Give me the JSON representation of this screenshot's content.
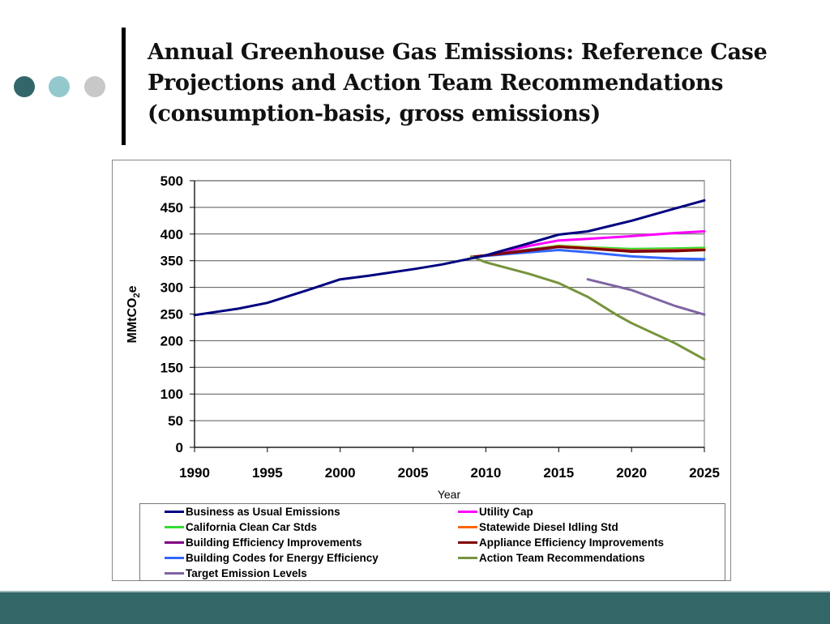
{
  "slide": {
    "title_lines": [
      "Annual Greenhouse Gas Emissions: Reference Case",
      "Projections and Action Team Recommendations",
      "(consumption-basis, gross emissions)"
    ],
    "decor_dot_colors": [
      "#33666a",
      "#93c9cc",
      "#c8c8c8"
    ],
    "footer_color": "#336666"
  },
  "chart_data": {
    "type": "line",
    "title": "Annual Greenhouse Gas Emissions: Reference Case Projections and Action Team Recommendations (consumption-basis, gross emissions)",
    "xlabel": "Year",
    "ylabel": "MMtCO2e",
    "ylabel_main": "MMtCO",
    "ylabel_sub": "2",
    "ylabel_tail": "e",
    "xlim": [
      1990,
      2025
    ],
    "ylim": [
      0,
      500
    ],
    "xticks": [
      1990,
      1995,
      2000,
      2005,
      2010,
      2015,
      2020,
      2025
    ],
    "xtick_labels": [
      "1990",
      "1995",
      "2000",
      "2005",
      "2010",
      "2015",
      "2020",
      "2025"
    ],
    "yticks": [
      0,
      50,
      100,
      150,
      200,
      250,
      300,
      350,
      400,
      450,
      500
    ],
    "ytick_labels": [
      "0",
      "50",
      "100",
      "150",
      "200",
      "250",
      "300",
      "350",
      "400",
      "450",
      "500"
    ],
    "grid": true,
    "legend_position": "bottom",
    "series": [
      {
        "name": "Business as Usual Emissions",
        "color": "#000080",
        "x": [
          1990,
          1993,
          1995,
          1998,
          2000,
          2002,
          2005,
          2007,
          2010,
          2013,
          2015,
          2017,
          2020,
          2023,
          2025
        ],
        "y": [
          248,
          260,
          271,
          297,
          315,
          322,
          334,
          343,
          360,
          383,
          399,
          405,
          425,
          448,
          463
        ]
      },
      {
        "name": "Utility Cap",
        "color": "#ff00ff",
        "x": [
          2009,
          2010,
          2013,
          2015,
          2017,
          2020,
          2023,
          2025
        ],
        "y": [
          357,
          360,
          378,
          388,
          391,
          396,
          402,
          405
        ]
      },
      {
        "name": "California Clean Car Stds",
        "color": "#33dd33",
        "x": [
          2009,
          2010,
          2013,
          2015,
          2017,
          2020,
          2023,
          2025
        ],
        "y": [
          357,
          360,
          371,
          378,
          375,
          372,
          373,
          374
        ]
      },
      {
        "name": "Statewide Diesel Idling Std",
        "color": "#ff6600",
        "x": [
          2009,
          2010,
          2013,
          2015,
          2017,
          2020,
          2023,
          2025
        ],
        "y": [
          357,
          360,
          370,
          377,
          374,
          369,
          370,
          371
        ]
      },
      {
        "name": "Building Efficiency Improvements",
        "color": "#800080",
        "x": [
          2009,
          2010,
          2013,
          2015,
          2017,
          2020,
          2023,
          2025
        ],
        "y": [
          357,
          360,
          370,
          376,
          373,
          368,
          369,
          370
        ]
      },
      {
        "name": "Appliance Efficiency Improvements",
        "color": "#800000",
        "x": [
          2009,
          2010,
          2013,
          2015,
          2017,
          2020,
          2023,
          2025
        ],
        "y": [
          357,
          360,
          369,
          376,
          373,
          367,
          368,
          370
        ]
      },
      {
        "name": "Building Codes for Energy Efficiency",
        "color": "#3366ff",
        "x": [
          2009,
          2010,
          2013,
          2015,
          2017,
          2020,
          2023,
          2025
        ],
        "y": [
          357,
          359,
          366,
          370,
          366,
          358,
          354,
          353
        ]
      },
      {
        "name": "Action Team Recommendations",
        "color": "#77933c",
        "x": [
          2009,
          2010,
          2013,
          2015,
          2017,
          2019,
          2020,
          2023,
          2025
        ],
        "y": [
          358,
          347,
          325,
          308,
          282,
          248,
          233,
          195,
          165
        ]
      },
      {
        "name": "Target Emission Levels",
        "color": "#8064a2",
        "x": [
          2017,
          2020,
          2023,
          2025
        ],
        "y": [
          315,
          295,
          265,
          249
        ]
      }
    ]
  }
}
